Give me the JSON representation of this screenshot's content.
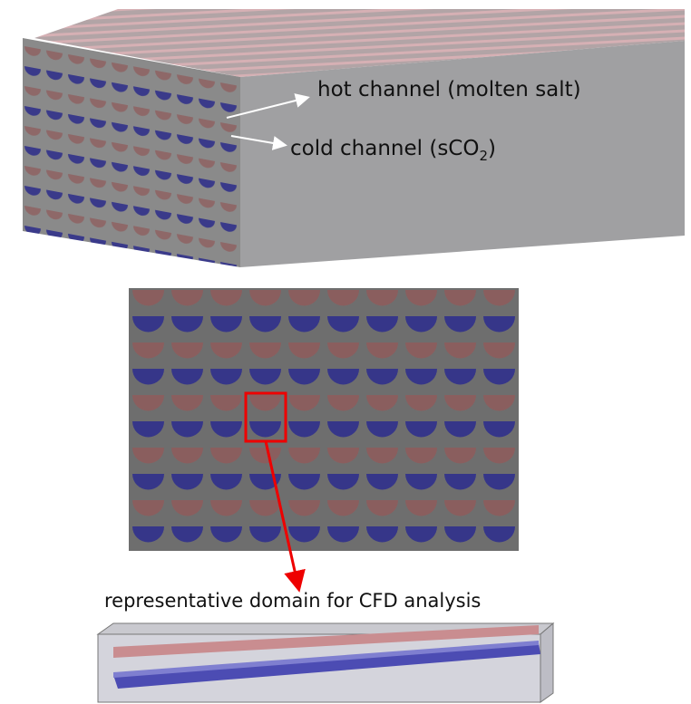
{
  "labels": {
    "hot": "hot channel (molten salt)",
    "cold": {
      "text": "cold channel (sCO",
      "subscript": "2",
      "suffix": ")"
    }
  },
  "caption": "representative domain for CFD analysis"
}
